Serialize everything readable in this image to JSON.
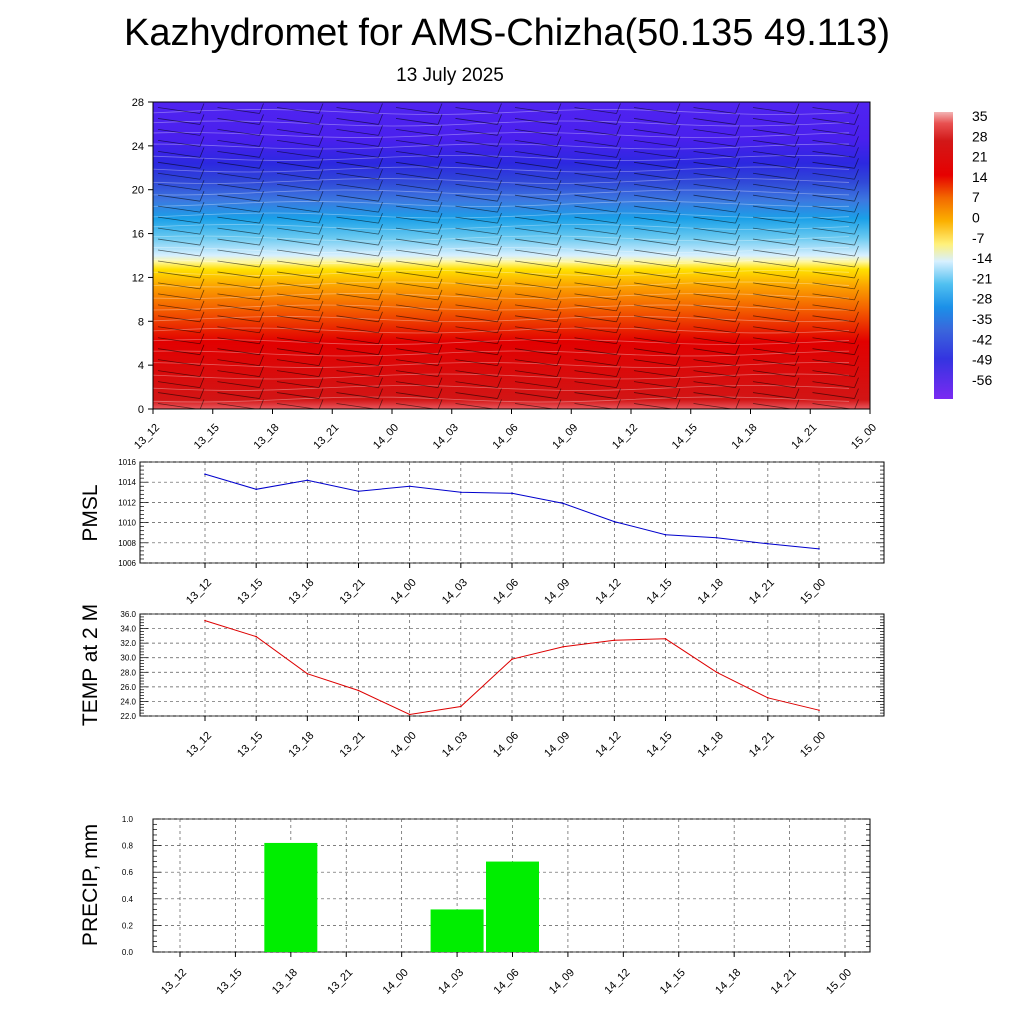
{
  "header": {
    "title": "Kazhydromet for AMS-Chizha(50.135 49.113)",
    "subtitle": "13 July 2025"
  },
  "colors": {
    "pmsl_line": "#0000cc",
    "temp_line": "#dd0000",
    "precip_bar": "#00ee00"
  },
  "chart_data": [
    {
      "type": "heatmap",
      "name_hint": "cross-section",
      "x": [
        "13_12",
        "13_15",
        "13_18",
        "13_21",
        "14_00",
        "14_03",
        "14_06",
        "14_09",
        "14_12",
        "14_15",
        "14_18",
        "14_21",
        "15_00"
      ],
      "yticks": [
        0,
        4,
        8,
        12,
        16,
        20,
        24,
        28
      ],
      "ylim": [
        0,
        28
      ],
      "colorbar": {
        "labels": [
          "35",
          "28",
          "21",
          "14",
          "7",
          "0",
          "-7",
          "-14",
          "-21",
          "-28",
          "-35",
          "-42",
          "-49",
          "-56"
        ],
        "min": -63,
        "max": 42
      },
      "grid": false
    },
    {
      "type": "line",
      "x": [
        "13_12",
        "13_15",
        "13_18",
        "13_21",
        "14_00",
        "14_03",
        "14_06",
        "14_09",
        "14_12",
        "14_15",
        "14_18",
        "14_21",
        "15_00"
      ],
      "values": [
        1014.8,
        1013.3,
        1014.2,
        1013.1,
        1013.6,
        1013.0,
        1012.9,
        1011.9,
        1010.1,
        1008.8,
        1008.5,
        1007.9,
        1007.4
      ],
      "ylabel": "PMSL",
      "ylim": [
        1006,
        1016
      ],
      "yticks": [
        "1006",
        "1008",
        "1010",
        "1012",
        "1014",
        "1016"
      ],
      "grid": true
    },
    {
      "type": "line",
      "x": [
        "13_12",
        "13_15",
        "13_18",
        "13_21",
        "14_00",
        "14_03",
        "14_06",
        "14_09",
        "14_12",
        "14_15",
        "14_18",
        "14_21",
        "15_00"
      ],
      "values": [
        35.1,
        32.9,
        27.8,
        25.5,
        22.2,
        23.3,
        29.8,
        31.5,
        32.4,
        32.6,
        28.0,
        24.5,
        22.8
      ],
      "ylabel": "TEMP at 2 M",
      "ylim": [
        22,
        36
      ],
      "yticks": [
        "22.0",
        "24.0",
        "26.0",
        "28.0",
        "30.0",
        "32.0",
        "34.0",
        "36.0"
      ],
      "grid": true
    },
    {
      "type": "bar",
      "x": [
        "13_12",
        "13_15",
        "13_18",
        "13_21",
        "14_00",
        "14_03",
        "14_06",
        "14_09",
        "14_12",
        "14_15",
        "14_18",
        "14_21",
        "15_00"
      ],
      "values": [
        0,
        0,
        0.82,
        0,
        0,
        0.32,
        0.68,
        0,
        0,
        0,
        0,
        0,
        0
      ],
      "ylabel": "PRECIP, mm",
      "ylim": [
        0,
        1.0
      ],
      "yticks": [
        "0.0",
        "0.2",
        "0.4",
        "0.6",
        "0.8",
        "1.0"
      ],
      "grid": true
    }
  ]
}
